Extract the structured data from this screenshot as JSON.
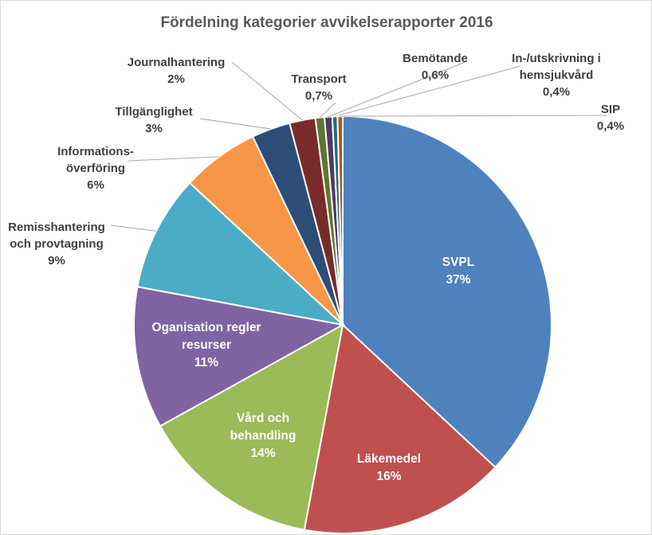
{
  "chart_data": {
    "type": "pie",
    "title": "Fördelning kategorier avvikelserapporter 2016",
    "slices": [
      {
        "name": "SVPL",
        "value": 37,
        "percent_label": "37%",
        "color": "#4f81bd",
        "label_lines": [
          "SVPL"
        ]
      },
      {
        "name": "Läkemedel",
        "value": 16,
        "percent_label": "16%",
        "color": "#c0504d",
        "label_lines": [
          "Läkemedel"
        ]
      },
      {
        "name": "Vård och behandling",
        "value": 14,
        "percent_label": "14%",
        "color": "#9bbb59",
        "label_lines": [
          "Vård och",
          "behandling"
        ]
      },
      {
        "name": "Oganisation regler resurser",
        "value": 11,
        "percent_label": "11%",
        "color": "#8064a2",
        "label_lines": [
          "Oganisation regler",
          "resurser"
        ]
      },
      {
        "name": "Remisshantering och provtagning",
        "value": 9,
        "percent_label": "9%",
        "color": "#4bacc6",
        "label_lines": [
          "Remisshantering",
          "och provtagning"
        ]
      },
      {
        "name": "Informationsöverföring",
        "value": 6,
        "percent_label": "6%",
        "color": "#f79646",
        "label_lines": [
          "Informations-",
          "överföring"
        ]
      },
      {
        "name": "Tillgänglighet",
        "value": 3,
        "percent_label": "3%",
        "color": "#2c4d75",
        "label_lines": [
          "Tillgänglighet"
        ]
      },
      {
        "name": "Journalhantering",
        "value": 2,
        "percent_label": "2%",
        "color": "#772c2a",
        "label_lines": [
          "Journalhantering"
        ]
      },
      {
        "name": "Transport",
        "value": 0.7,
        "percent_label": "0,7%",
        "color": "#5f7530",
        "label_lines": [
          "Transport"
        ]
      },
      {
        "name": "Bemötande",
        "value": 0.6,
        "percent_label": "0,6%",
        "color": "#4d3b62",
        "label_lines": [
          "Bemötande"
        ]
      },
      {
        "name": "In-/utskrivning i hemsjukvård",
        "value": 0.4,
        "percent_label": "0,4%",
        "color": "#276a7c",
        "label_lines": [
          "In-/utskrivning i",
          "hemsjukvård"
        ]
      },
      {
        "name": "SIP",
        "value": 0.4,
        "percent_label": "0,4%",
        "color": "#b65708",
        "label_lines": [
          "SIP"
        ]
      }
    ],
    "legend": "none",
    "data_labels": "category name and percentage"
  }
}
